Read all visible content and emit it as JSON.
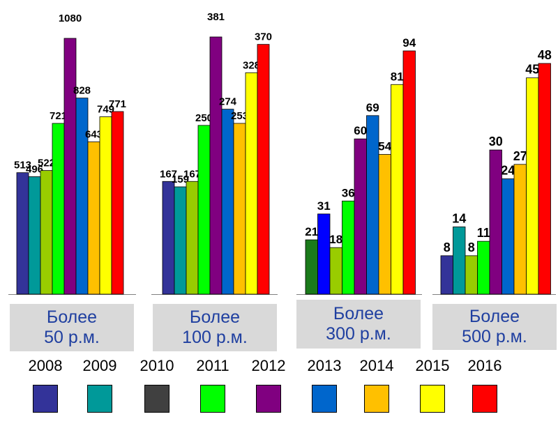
{
  "chart_data": {
    "type": "bar",
    "years": [
      "2008",
      "2009",
      "2010",
      "2011",
      "2012",
      "2013",
      "2014",
      "2015",
      "2016"
    ],
    "year_colors": [
      "#333399",
      "#009999",
      "#404040",
      "#00ff00",
      "#800080",
      "#0066cc",
      "#ffc000",
      "#ffff00",
      "#ff0000"
    ],
    "groups": [
      {
        "label_line1": "Более",
        "label_line2": "50 р.м.",
        "bars": [
          {
            "year": "2008",
            "value": 513,
            "label": "513"
          },
          {
            "year": "2009",
            "value": 496,
            "label": "496"
          },
          {
            "year": "",
            "value": 522,
            "label": "522",
            "color": "#99cc00"
          },
          {
            "year": "2011",
            "value": 721,
            "label": "721"
          },
          {
            "year": "2012",
            "value": 1080,
            "label": "1080"
          },
          {
            "year": "2013",
            "value": 828,
            "label": "828"
          },
          {
            "year": "2014",
            "value": 643,
            "label": "643"
          },
          {
            "year": "2015",
            "value": 749,
            "label": "749"
          },
          {
            "year": "2016",
            "value": 771,
            "label": "771"
          }
        ]
      },
      {
        "label_line1": "Более",
        "label_line2": "100 р.м.",
        "bars": [
          {
            "year": "2008",
            "value": 167,
            "label": "167"
          },
          {
            "year": "2009",
            "value": 159,
            "label": "159"
          },
          {
            "year": "",
            "value": 167,
            "label": "167",
            "color": "#99cc00"
          },
          {
            "year": "2011",
            "value": 250,
            "label": "250"
          },
          {
            "year": "2012",
            "value": 381,
            "label": "381"
          },
          {
            "year": "2013",
            "value": 274,
            "label": "274"
          },
          {
            "year": "2014",
            "value": 253,
            "label": "253"
          },
          {
            "year": "2015",
            "value": 328,
            "label": "328"
          },
          {
            "year": "2016",
            "value": 370,
            "label": "370"
          }
        ]
      },
      {
        "label_line1": "Более",
        "label_line2": "300 р.м.",
        "bars": [
          {
            "year": "",
            "value": 21,
            "label": "21",
            "color": "#1a7a1a"
          },
          {
            "year": "",
            "value": 31,
            "label": "31",
            "color": "#0000ff"
          },
          {
            "year": "",
            "value": 18,
            "label": "18",
            "color": "#99cc00"
          },
          {
            "year": "2011",
            "value": 36,
            "label": "36"
          },
          {
            "year": "2012",
            "value": 60,
            "label": "60"
          },
          {
            "year": "2013",
            "value": 69,
            "label": "69"
          },
          {
            "year": "2014",
            "value": 54,
            "label": "54"
          },
          {
            "year": "2015",
            "value": 81,
            "label": "81"
          },
          {
            "year": "2016",
            "value": 94,
            "label": "94"
          }
        ]
      },
      {
        "label_line1": "Более",
        "label_line2": "500 р.м.",
        "bars": [
          {
            "year": "2008",
            "value": 8,
            "label": "8"
          },
          {
            "year": "2009",
            "value": 14,
            "label": "14"
          },
          {
            "year": "",
            "value": 8,
            "label": "8",
            "color": "#99cc00"
          },
          {
            "year": "2011",
            "value": 11,
            "label": "11"
          },
          {
            "year": "2012",
            "value": 30,
            "label": "30"
          },
          {
            "year": "2013",
            "value": 24,
            "label": "24"
          },
          {
            "year": "2014",
            "value": 27,
            "label": "27"
          },
          {
            "year": "2015",
            "value": 45,
            "label": "45"
          },
          {
            "year": "2016",
            "value": 48,
            "label": "48"
          }
        ]
      }
    ]
  }
}
